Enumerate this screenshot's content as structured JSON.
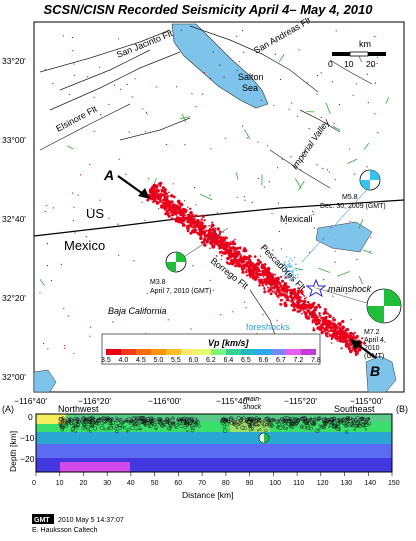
{
  "title": "SCSN/CISN Recorded Seismicity April 4– May 4, 2010",
  "map": {
    "lat_ticks": [
      "33°20'",
      "33°00'",
      "32°40'",
      "32°20'",
      "32°00'"
    ],
    "lon_ticks": [
      "−116°40'",
      "−116°20'",
      "−116°00'",
      "−115°40'",
      "−115°20'",
      "−115°00'"
    ],
    "scale_bar": {
      "unit": "km",
      "labels": [
        "0",
        "10",
        "20"
      ]
    },
    "labels": {
      "san_jacinto": "San Jacinto Flt",
      "san_andreas": "San Andreas Flt",
      "salton_sea_1": "Salton",
      "salton_sea_2": "Sea",
      "elsinore": "Elsinore Flt",
      "imperial_valley": "Imperial Valley",
      "us": "US",
      "mexico": "Mexico",
      "mexicali": "Mexicali",
      "borrego": "Borrego Flt",
      "pescadores": "Pescadores Flt",
      "baja": "Baja California",
      "mainshock": "mainshock",
      "foreshocks": "foreshocks",
      "A": "A",
      "B": "B"
    },
    "events": [
      {
        "id": "m58",
        "line1": "M5.8",
        "line2": "Dec. 30, 2009 (GMT)"
      },
      {
        "id": "m38",
        "line1": "M3.8",
        "line2": "April 7, 2010 (GMT)"
      },
      {
        "id": "m72",
        "line1": "M7.2",
        "line2": "April 4,",
        "line3": "2010",
        "line4": "(GMT)"
      }
    ],
    "colorbar": {
      "title": "Vp [km/s]",
      "labels": [
        "3.5",
        "4.0",
        "4.5",
        "5.0",
        "5.5",
        "6.0",
        "6.2",
        "6.4",
        "6.5",
        "6.6",
        "6.7",
        "7.2",
        "7.8"
      ],
      "colors": [
        "#e8001b",
        "#f23a16",
        "#f66a12",
        "#fa9410",
        "#ffbf24",
        "#ffe873",
        "#e3ff6f",
        "#7cf57a",
        "#32d495",
        "#22b6c7",
        "#32a7ee",
        "#7a88ff",
        "#e85cf0",
        "#c33ad8"
      ]
    }
  },
  "section": {
    "left_label": "(A)",
    "right_label": "(B)",
    "northwest": "Northwest",
    "southeast": "Southeast",
    "mainshock_1": "main-",
    "mainshock_2": "shock",
    "ylabel": "Depth [km]",
    "xlabel": "Distance [km]",
    "x_ticks": [
      "0",
      "10",
      "20",
      "30",
      "40",
      "50",
      "60",
      "70",
      "80",
      "90",
      "100",
      "110",
      "120",
      "130",
      "140",
      "150"
    ],
    "y_ticks": [
      "0",
      "−10",
      "−20"
    ]
  },
  "footer": {
    "gmt": "GMT",
    "timestamp": "2010 May 5 14:37:07",
    "credit": "E. Hauksson Caltech"
  }
}
